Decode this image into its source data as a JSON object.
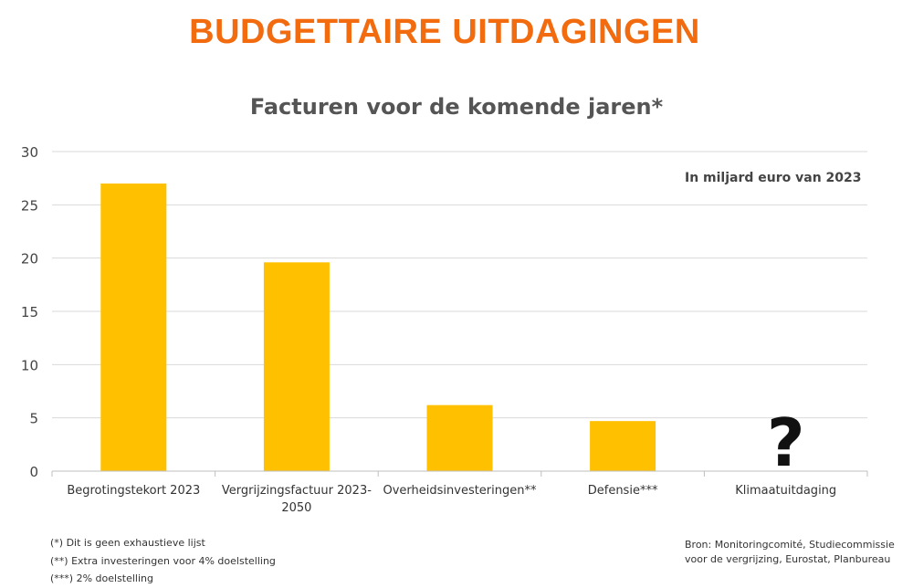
{
  "banner_title": "BUDGETTAIRE UITDAGINGEN",
  "chart_data": {
    "type": "bar",
    "title": "Facturen voor de komende jaren*",
    "unit_note": "In miljard euro van 2023",
    "categories": [
      [
        "Begrotingstekort 2023"
      ],
      [
        "Vergrijzingsfactuur 2023-",
        "2050"
      ],
      [
        "Overheidsinvesteringen**"
      ],
      [
        "Defensie***"
      ],
      [
        "Klimaatuitdaging"
      ]
    ],
    "values": [
      27,
      19.6,
      6.2,
      4.7,
      null
    ],
    "unknown_marker": "?",
    "yticks": [
      0,
      5,
      10,
      15,
      20,
      25,
      30
    ],
    "ylim": [
      0,
      30
    ],
    "grid": true,
    "bar_color": "#ffc000"
  },
  "footnotes": [
    "(*) Dit is geen exhaustieve lijst",
    "(**) Extra investeringen voor 4% doelstelling",
    "(***) 2% doelstelling"
  ],
  "source": [
    "Bron: Monitoringcomité, Studiecommissie",
    "voor de vergrijzing, Eurostat, Planbureau"
  ]
}
